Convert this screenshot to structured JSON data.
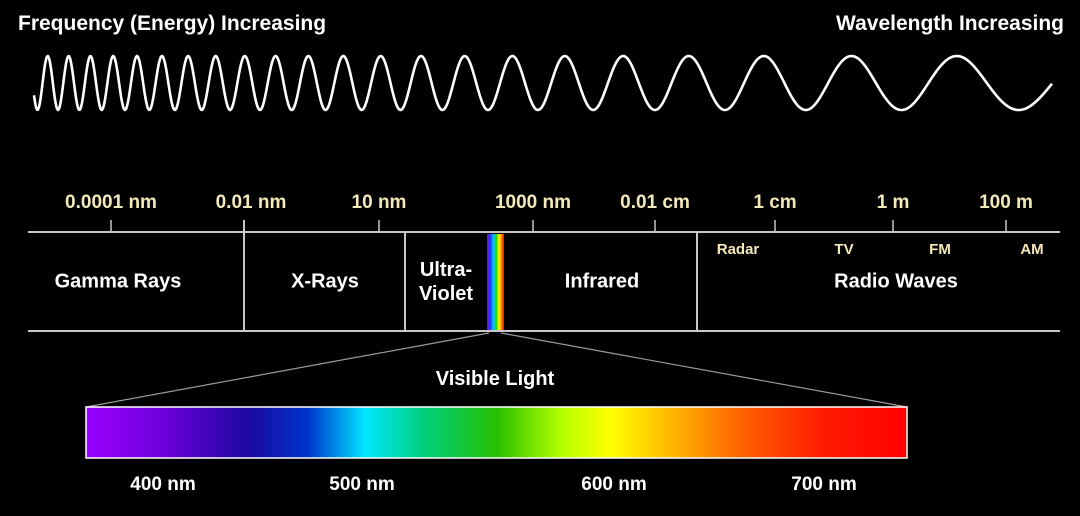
{
  "header": {
    "left_title": "Frequency (Energy) Increasing",
    "right_title": "Wavelength Increasing"
  },
  "scale_labels": [
    "0.0001 nm",
    "0.01 nm",
    "10 nm",
    "1000 nm",
    "0.01 cm",
    "1 cm",
    "1 m",
    "100 m"
  ],
  "bands": {
    "gamma": "Gamma Rays",
    "xray": "X-Rays",
    "uv_line1": "Ultra-",
    "uv_line2": "Violet",
    "infrared": "Infrared",
    "radio": "Radio Waves"
  },
  "radio_subbands": [
    "Radar",
    "TV",
    "FM",
    "AM"
  ],
  "visible": {
    "title": "Visible Light",
    "ticks": [
      "400 nm",
      "500 nm",
      "600 nm",
      "700 nm"
    ]
  },
  "colors": {
    "background": "#000000",
    "text": "#ffffff",
    "scale_text": "#f4e9b8",
    "lines": "#c8c8c8",
    "wave": "#ffffff"
  }
}
